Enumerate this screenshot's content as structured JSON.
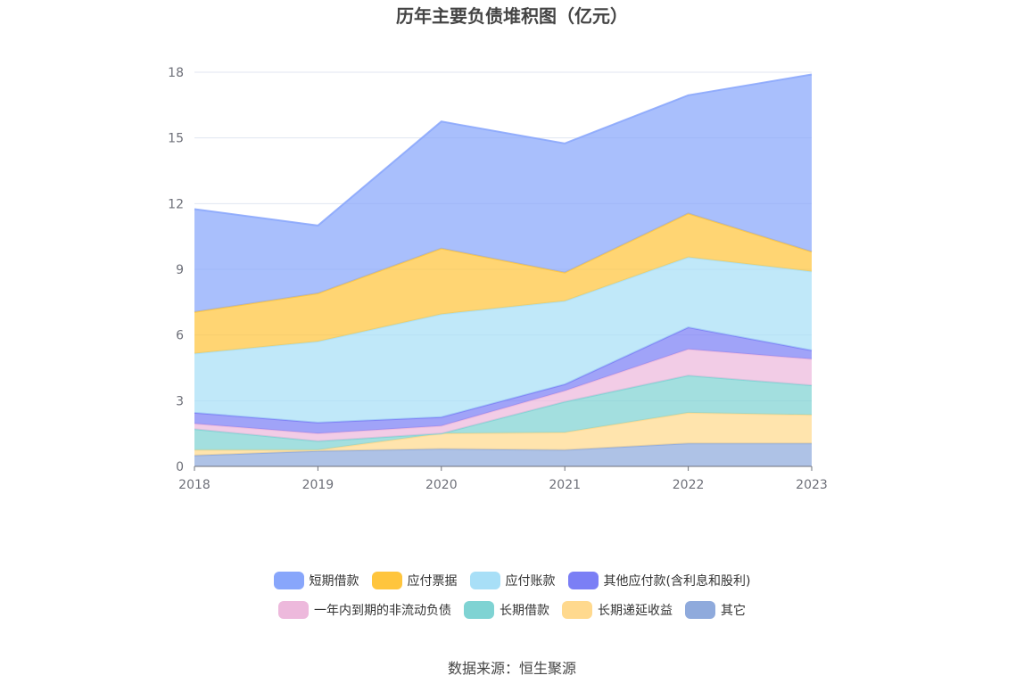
{
  "chart_data": {
    "type": "area",
    "title": "历年主要负债堆积图（亿元）",
    "stacked": true,
    "categories": [
      "2018",
      "2019",
      "2020",
      "2021",
      "2022",
      "2023"
    ],
    "y_ticks": [
      "0",
      "3",
      "6",
      "9",
      "12",
      "15",
      "18"
    ],
    "ylim": [
      0,
      18
    ],
    "grid": true,
    "legend_position": "bottom",
    "series": [
      {
        "name": "其它",
        "color": "#8faadc",
        "values": [
          0.5,
          0.7,
          0.8,
          0.75,
          1.05,
          1.05
        ]
      },
      {
        "name": "长期递延收益",
        "color": "#ffd98e",
        "values": [
          0.25,
          0.05,
          0.7,
          0.8,
          1.4,
          1.3
        ]
      },
      {
        "name": "长期借款",
        "color": "#7fd3d3",
        "values": [
          0.95,
          0.4,
          0.0,
          1.4,
          1.7,
          1.35
        ]
      },
      {
        "name": "一年内到期的非流动负债",
        "color": "#edb9dc",
        "values": [
          0.25,
          0.35,
          0.35,
          0.5,
          1.2,
          1.2
        ]
      },
      {
        "name": "其他应付款(含利息和股利)",
        "color": "#7b7ff5",
        "values": [
          0.5,
          0.5,
          0.4,
          0.3,
          1.0,
          0.4
        ]
      },
      {
        "name": "应付账款",
        "color": "#a8dff7",
        "values": [
          2.7,
          3.7,
          4.7,
          3.8,
          3.2,
          3.6
        ]
      },
      {
        "name": "应付票据",
        "color": "#ffc53d",
        "values": [
          1.9,
          2.2,
          3.0,
          1.3,
          2.0,
          0.9
        ]
      },
      {
        "name": "短期借款",
        "color": "#88a6fb",
        "values": [
          4.7,
          3.1,
          5.8,
          5.9,
          5.4,
          8.1
        ]
      }
    ]
  },
  "legend_rows": [
    [
      "短期借款",
      "应付票据",
      "应付账款",
      "其他应付款(含利息和股利)"
    ],
    [
      "一年内到期的非流动负债",
      "长期借款",
      "长期递延收益",
      "其它"
    ]
  ],
  "source": "数据来源：恒生聚源"
}
